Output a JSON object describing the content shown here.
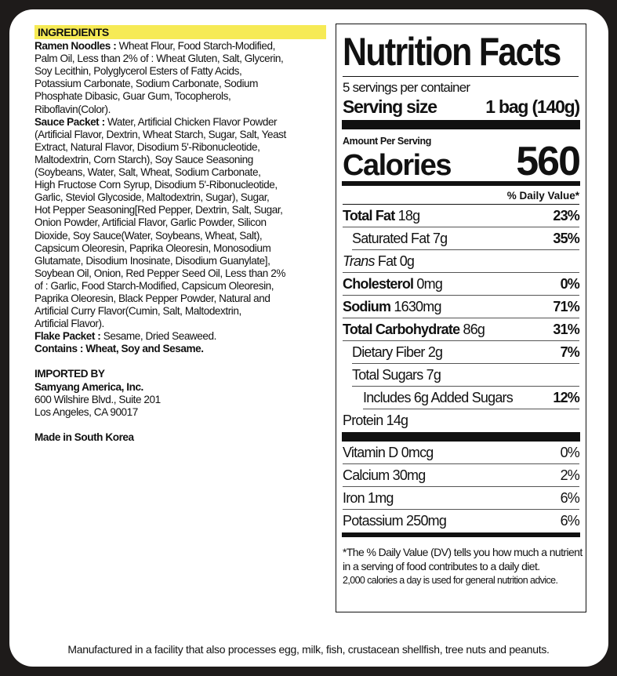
{
  "ingredients": {
    "heading": "INGREDIENTS",
    "ramen_label": "Ramen Noodles :",
    "ramen_lines": [
      " Wheat Flour, Food Starch-Modified,",
      "Palm Oil, Less than 2% of : Wheat Gluten, Salt, Glycerin,",
      "Soy Lecithin, Polyglycerol Esters of Fatty Acids,",
      "Potassium Carbonate, Sodium Carbonate, Sodium",
      "Phosphate Dibasic, Guar Gum, Tocopherols,",
      "Riboflavin(Color)."
    ],
    "sauce_label": "Sauce Packet :",
    "sauce_lines": [
      " Water, Artificial Chicken Flavor Powder",
      "(Artificial Flavor, Dextrin, Wheat Starch, Sugar, Salt, Yeast",
      "Extract, Natural Flavor, Disodium 5'-Ribonucleotide,",
      "Maltodextrin, Corn Starch), Soy Sauce Seasoning",
      "(Soybeans, Water, Salt, Wheat, Sodium Carbonate,",
      "High Fructose Corn Syrup, Disodium 5'-Ribonucleotide,",
      "Garlic, Steviol Glycoside, Maltodextrin, Sugar), Sugar,",
      "Hot Pepper Seasoning[Red Pepper, Dextrin, Salt, Sugar,",
      "Onion Powder, Artificial Flavor, Garlic Powder, Silicon",
      "Dioxide, Soy Sauce(Water, Soybeans, Wheat, Salt),",
      "Capsicum Oleoresin, Paprika Oleoresin, Monosodium",
      "Glutamate, Disodium Inosinate, Disodium Guanylate],",
      "Soybean Oil, Onion, Red Pepper Seed Oil, Less than 2%",
      "of : Garlic, Food Starch-Modified, Capsicum Oleoresin,",
      "Paprika Oleoresin, Black Pepper Powder, Natural and",
      "Artificial Curry Flavor(Cumin, Salt, Maltodextrin,",
      "Artificial Flavor)."
    ],
    "flake_label": "Flake Packet :",
    "flake_text": " Sesame, Dried Seaweed.",
    "contains": "Contains : Wheat, Soy and Sesame.",
    "imported_by": "IMPORTED BY",
    "company": "Samyang America, Inc.",
    "address1": "600 Wilshire Blvd., Suite 201",
    "address2": "Los Angeles, CA 90017",
    "made_in": "Made in South Korea"
  },
  "nutrition": {
    "title": "Nutrition Facts",
    "servings": "5 servings per container",
    "serving_size_label": "Serving size",
    "serving_size_value": "1 bag (140g)",
    "amount_per_serving": "Amount Per Serving",
    "calories_label": "Calories",
    "calories_value": "560",
    "dv_header": "% Daily Value*",
    "rows": [
      {
        "label": "Total Fat",
        "amount": " 18g",
        "dv": "23%"
      },
      {
        "label": "Saturated Fat 7g",
        "amount": "",
        "dv": "35%"
      },
      {
        "label": "Trans",
        "amount": " Fat 0g",
        "dv": ""
      },
      {
        "label": "Cholesterol",
        "amount": " 0mg",
        "dv": "0%"
      },
      {
        "label": "Sodium",
        "amount": " 1630mg",
        "dv": "71%"
      },
      {
        "label": "Total Carbohydrate",
        "amount": " 86g",
        "dv": "31%"
      },
      {
        "label": "Dietary Fiber 2g",
        "amount": "",
        "dv": "7%"
      },
      {
        "label": "Total Sugars 7g",
        "amount": "",
        "dv": ""
      },
      {
        "label": "Includes 6g Added Sugars",
        "amount": "",
        "dv": "12%"
      },
      {
        "label": "Protein",
        "amount": " 14g",
        "dv": ""
      }
    ],
    "vitamins": [
      {
        "label": "Vitamin D 0mcg",
        "dv": "0%"
      },
      {
        "label": "Calcium 30mg",
        "dv": "2%"
      },
      {
        "label": "Iron 1mg",
        "dv": "6%"
      },
      {
        "label": "Potassium 250mg",
        "dv": "6%"
      }
    ],
    "footnote": [
      "*The % Daily Value (DV) tells you how much a nutrient",
      "in a serving of food contributes to a daily diet.",
      "2,000 calories a day is used for general nutrition advice."
    ]
  },
  "allergen_note": "Manufactured in a facility that also processes egg, milk, fish, crustacean shellfish, tree nuts and peanuts."
}
